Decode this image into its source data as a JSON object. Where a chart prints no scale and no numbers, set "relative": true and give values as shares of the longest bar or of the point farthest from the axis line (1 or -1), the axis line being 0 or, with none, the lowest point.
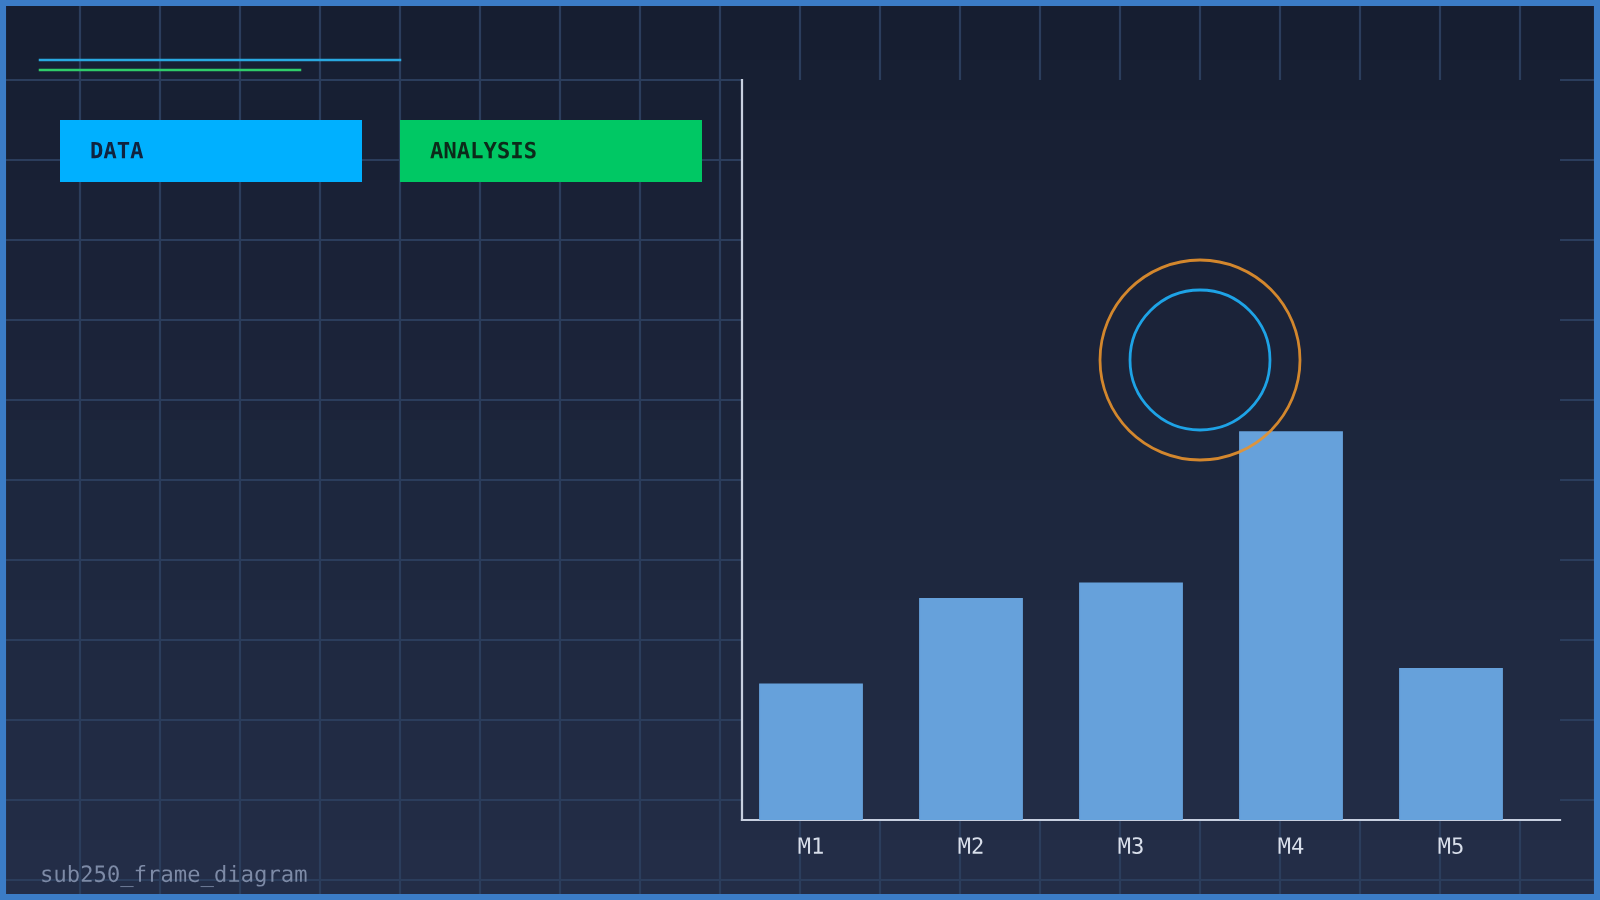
{
  "chart_data": {
    "type": "bar",
    "categories": [
      "M1",
      "M2",
      "M3",
      "M4",
      "M5"
    ],
    "values": [
      0.35,
      0.57,
      0.61,
      1,
      0.39
    ],
    "color": "#66a1db",
    "relative": true,
    "annotations": [
      "DATA",
      "ANALYSIS",
      "sub250_frame_diagram"
    ]
  }
}
